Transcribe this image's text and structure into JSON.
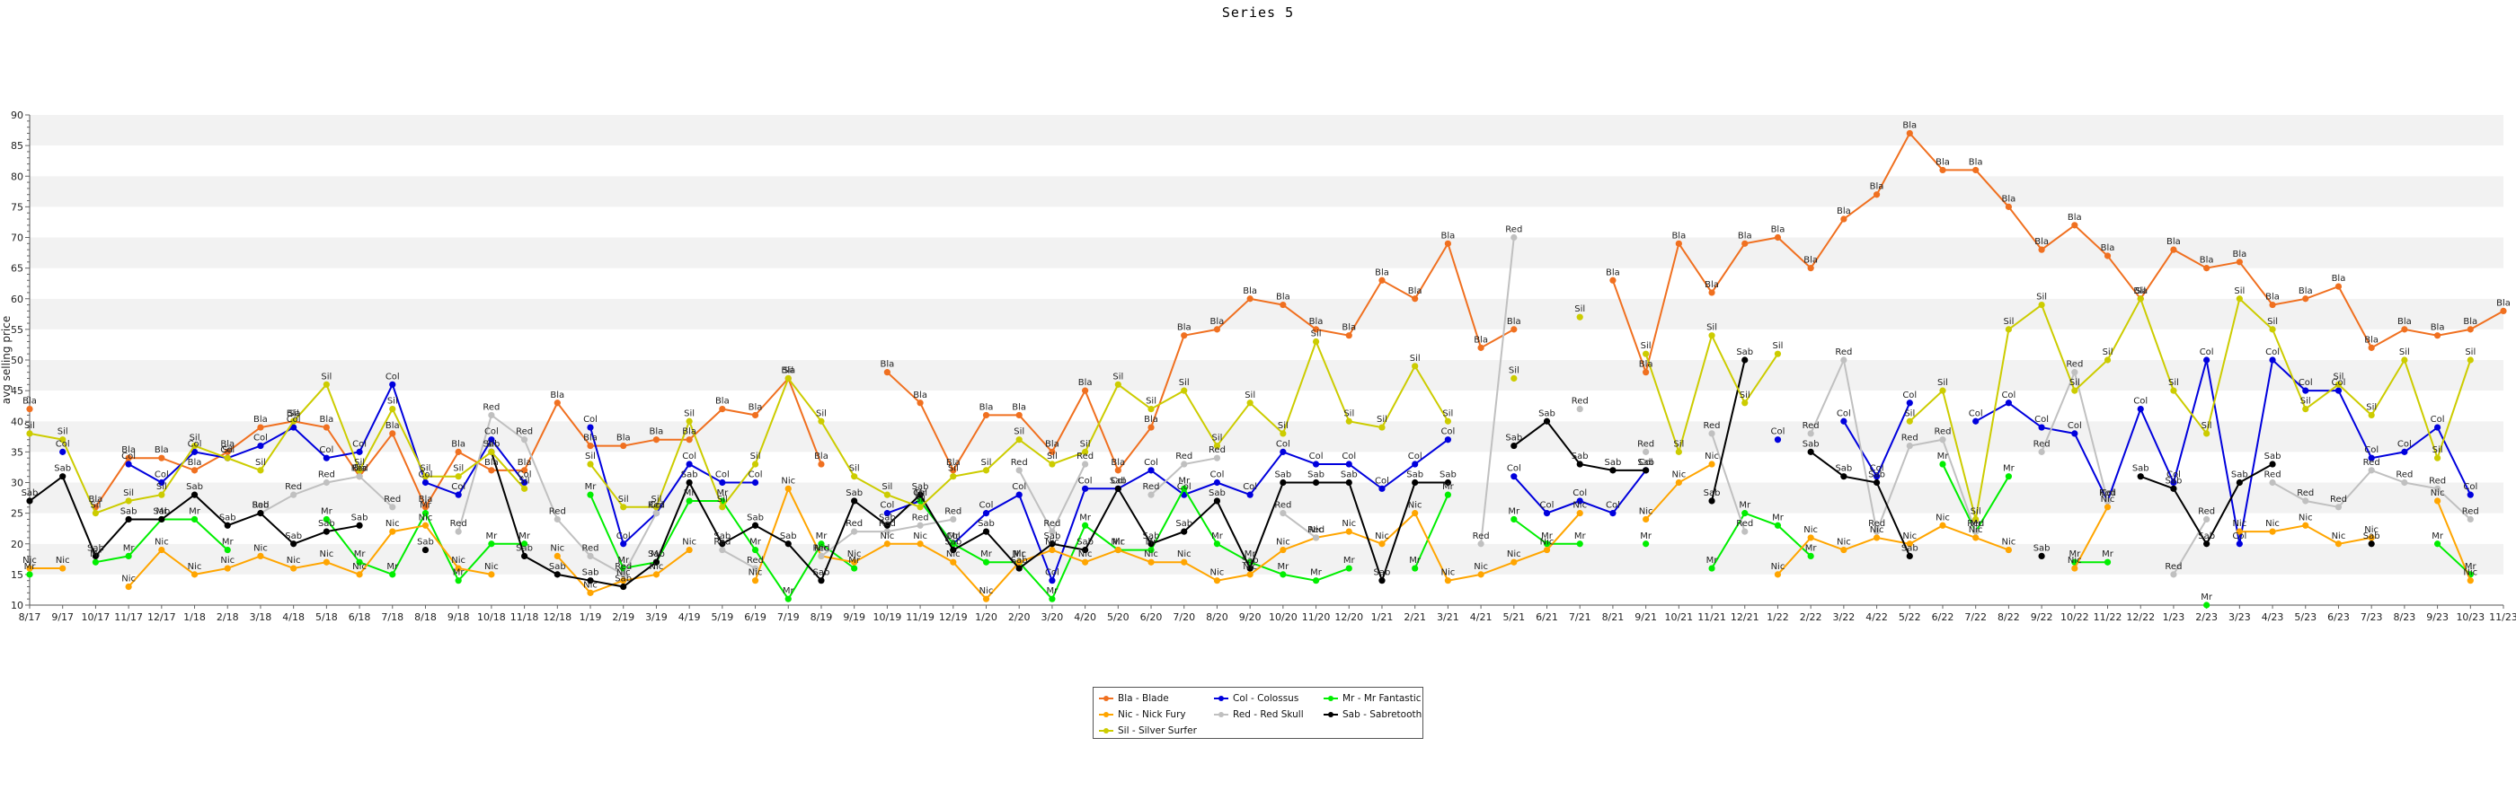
{
  "chart_data": {
    "type": "line",
    "title": "Series 5",
    "xlabel": "",
    "ylabel": "avg selling price",
    "ylim": [
      10,
      90
    ],
    "yticks": [
      10,
      15,
      20,
      25,
      30,
      35,
      40,
      45,
      50,
      55,
      60,
      65,
      70,
      75,
      80,
      85,
      90
    ],
    "grid": "horizontal bands",
    "legend_position": "bottom-center",
    "x": [
      "8/17",
      "9/17",
      "10/17",
      "11/17",
      "12/17",
      "1/18",
      "2/18",
      "3/18",
      "4/18",
      "5/18",
      "6/18",
      "7/18",
      "8/18",
      "9/18",
      "10/18",
      "11/18",
      "12/18",
      "1/19",
      "2/19",
      "3/19",
      "4/19",
      "5/19",
      "6/19",
      "7/19",
      "8/19",
      "9/19",
      "10/19",
      "11/19",
      "12/19",
      "1/20",
      "2/20",
      "3/20",
      "4/20",
      "5/20",
      "6/20",
      "7/20",
      "8/20",
      "9/20",
      "10/20",
      "11/20",
      "12/20",
      "1/21",
      "2/21",
      "3/21",
      "4/21",
      "5/21",
      "6/21",
      "7/21",
      "8/21",
      "9/21",
      "10/21",
      "11/21",
      "12/21",
      "1/22",
      "2/22",
      "3/22",
      "4/22",
      "5/22",
      "6/22",
      "7/22",
      "8/22",
      "9/22",
      "10/22",
      "11/22",
      "12/22",
      "1/23",
      "2/23",
      "3/23",
      "4/23",
      "5/23",
      "6/23",
      "7/23",
      "8/23",
      "9/23",
      "10/23",
      "11/23"
    ],
    "series": [
      {
        "name": "Bla - Blade",
        "label": "Bla",
        "color": "#f07020",
        "values": [
          42,
          null,
          26,
          34,
          34,
          32,
          35,
          39,
          40,
          39,
          31,
          38,
          26,
          35,
          32,
          32,
          43,
          36,
          36,
          37,
          37,
          42,
          41,
          47,
          33,
          null,
          48,
          43,
          32,
          41,
          41,
          35,
          45,
          32,
          39,
          54,
          55,
          60,
          59,
          55,
          54,
          63,
          60,
          69,
          52,
          55,
          null,
          null,
          63,
          48,
          69,
          61,
          69,
          70,
          65,
          73,
          77,
          87,
          81,
          81,
          75,
          68,
          72,
          67,
          60,
          68,
          65,
          66,
          59,
          60,
          62,
          52,
          55,
          54,
          55,
          58
        ]
      },
      {
        "name": "Col - Colossus",
        "label": "Col",
        "color": "#0000dd",
        "values": [
          null,
          35,
          null,
          33,
          30,
          35,
          34,
          36,
          39,
          34,
          35,
          46,
          30,
          28,
          37,
          30,
          null,
          39,
          20,
          25,
          33,
          30,
          30,
          null,
          null,
          null,
          25,
          27,
          20,
          25,
          28,
          14,
          29,
          29,
          32,
          28,
          30,
          28,
          35,
          33,
          33,
          29,
          33,
          37,
          null,
          31,
          25,
          27,
          25,
          32,
          null,
          null,
          null,
          37,
          null,
          40,
          31,
          43,
          null,
          40,
          43,
          39,
          38,
          27,
          42,
          30,
          50,
          20,
          50,
          45,
          45,
          34,
          35,
          39,
          28,
          null
        ]
      },
      {
        "name": "Mr - Mr Fantastic",
        "label": "Mr",
        "color": "#00ee00",
        "values": [
          15,
          null,
          17,
          18,
          24,
          24,
          19,
          null,
          null,
          24,
          17,
          15,
          25,
          14,
          20,
          20,
          null,
          28,
          16,
          17,
          27,
          27,
          19,
          11,
          20,
          16,
          null,
          27,
          20,
          17,
          17,
          11,
          23,
          19,
          19,
          29,
          20,
          17,
          15,
          14,
          16,
          null,
          16,
          28,
          null,
          24,
          20,
          20,
          null,
          20,
          null,
          16,
          25,
          23,
          18,
          null,
          null,
          null,
          33,
          22,
          31,
          null,
          17,
          17,
          null,
          null,
          10,
          null,
          null,
          null,
          null,
          null,
          null,
          20,
          15,
          null
        ]
      },
      {
        "name": "Nic - Nick Fury",
        "label": "Nic",
        "color": "#ffa500",
        "values": [
          16,
          16,
          null,
          13,
          19,
          15,
          16,
          18,
          16,
          17,
          15,
          22,
          23,
          16,
          15,
          null,
          18,
          12,
          14,
          15,
          19,
          null,
          14,
          29,
          18,
          17,
          20,
          20,
          17,
          11,
          17,
          19,
          17,
          19,
          17,
          17,
          14,
          15,
          19,
          21,
          22,
          20,
          25,
          14,
          15,
          17,
          19,
          25,
          null,
          24,
          30,
          33,
          null,
          15,
          21,
          19,
          21,
          20,
          23,
          21,
          19,
          null,
          16,
          26,
          null,
          null,
          null,
          22,
          22,
          23,
          20,
          21,
          null,
          27,
          14,
          null
        ]
      },
      {
        "name": "Red - Red Skull",
        "label": "Red",
        "color": "#c0c0c0",
        "values": [
          null,
          null,
          null,
          null,
          null,
          null,
          null,
          25,
          28,
          30,
          31,
          26,
          null,
          22,
          41,
          37,
          24,
          18,
          15,
          25,
          null,
          19,
          16,
          null,
          18,
          22,
          22,
          23,
          24,
          null,
          32,
          22,
          33,
          null,
          28,
          33,
          34,
          null,
          25,
          21,
          null,
          null,
          null,
          null,
          20,
          70,
          null,
          42,
          null,
          35,
          null,
          38,
          22,
          null,
          38,
          50,
          22,
          36,
          37,
          22,
          null,
          35,
          48,
          27,
          null,
          15,
          24,
          null,
          30,
          27,
          26,
          32,
          30,
          29,
          24,
          null
        ]
      },
      {
        "name": "Sab - Sabretooth",
        "label": "Sab",
        "color": "#000000",
        "values": [
          27,
          31,
          18,
          24,
          24,
          28,
          23,
          25,
          20,
          22,
          23,
          null,
          19,
          null,
          35,
          18,
          15,
          14,
          13,
          17,
          30,
          20,
          23,
          20,
          14,
          27,
          23,
          28,
          19,
          22,
          16,
          20,
          19,
          29,
          20,
          22,
          27,
          16,
          30,
          30,
          30,
          14,
          30,
          30,
          null,
          36,
          40,
          33,
          32,
          32,
          null,
          27,
          50,
          null,
          35,
          31,
          30,
          18,
          null,
          null,
          null,
          18,
          null,
          null,
          31,
          29,
          20,
          30,
          33,
          null,
          null,
          20,
          null,
          null,
          null,
          null
        ]
      },
      {
        "name": "Sil - Silver Surfer",
        "label": "Sil",
        "color": "#cccc00",
        "values": [
          38,
          37,
          25,
          27,
          28,
          36,
          34,
          32,
          40,
          46,
          32,
          42,
          31,
          31,
          35,
          29,
          null,
          33,
          26,
          26,
          40,
          26,
          33,
          47,
          40,
          31,
          28,
          26,
          31,
          32,
          37,
          33,
          35,
          46,
          42,
          45,
          36,
          43,
          38,
          53,
          40,
          39,
          49,
          40,
          null,
          47,
          null,
          57,
          null,
          51,
          35,
          54,
          43,
          51,
          null,
          null,
          null,
          40,
          45,
          24,
          55,
          59,
          45,
          50,
          60,
          45,
          38,
          60,
          55,
          42,
          46,
          41,
          50,
          34,
          50,
          null
        ]
      }
    ]
  }
}
